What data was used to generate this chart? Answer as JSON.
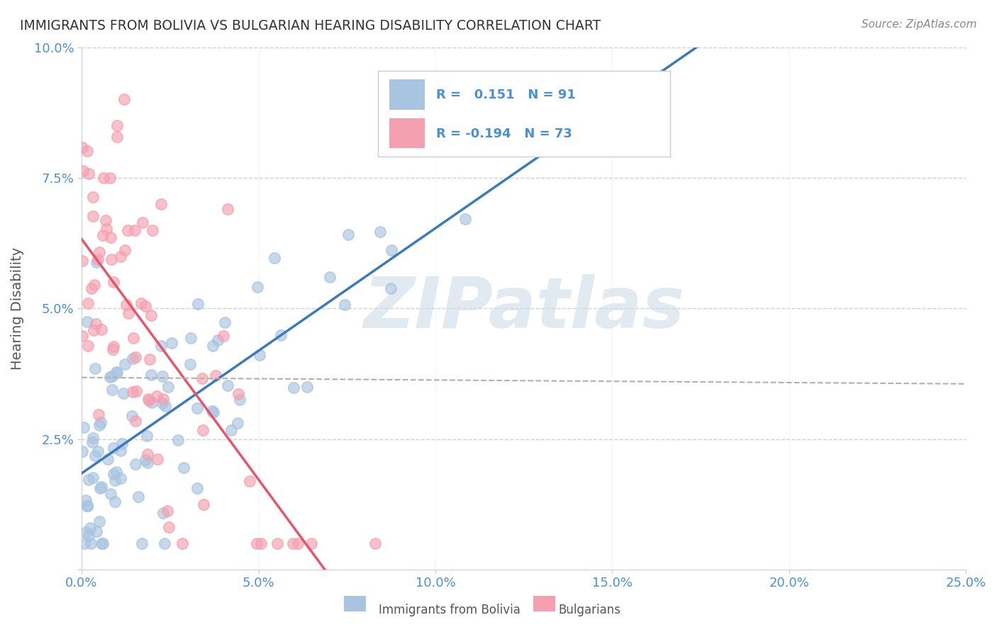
{
  "title": "IMMIGRANTS FROM BOLIVIA VS BULGARIAN HEARING DISABILITY CORRELATION CHART",
  "source": "Source: ZipAtlas.com",
  "ylabel": "Hearing Disability",
  "xlabel": "",
  "bolivia_R": 0.151,
  "bolivia_N": 91,
  "bulgarian_R": -0.194,
  "bulgarian_N": 73,
  "xlim": [
    0.0,
    0.25
  ],
  "ylim": [
    0.0,
    0.1
  ],
  "xticks": [
    0.0,
    0.05,
    0.1,
    0.15,
    0.2,
    0.25
  ],
  "yticks": [
    0.0,
    0.025,
    0.05,
    0.075,
    0.1
  ],
  "xticklabels": [
    "0.0%",
    "5.0%",
    "10.0%",
    "15.0%",
    "20.0%",
    "25.0%"
  ],
  "yticklabels": [
    "",
    "2.5%",
    "5.0%",
    "7.5%",
    "10.0%"
  ],
  "bolivia_color": "#a8c4e0",
  "bulgarian_color": "#f4a0b0",
  "bolivia_line_color": "#3a7abf",
  "bulgarian_line_color": "#e8546a",
  "trend_line_color": "#b0b0b0",
  "background_color": "#ffffff",
  "grid_color": "#d0d0d0",
  "title_color": "#333333",
  "axis_label_color": "#555555",
  "tick_label_color": "#4a90d9",
  "legend_R_color": "#4a90d9",
  "watermark_color": "#d0dce8",
  "watermark_text": "ZIPatlas",
  "legend_label_bolivia": "Immigrants from Bolivia",
  "legend_label_bulgarian": "Bulgarians"
}
